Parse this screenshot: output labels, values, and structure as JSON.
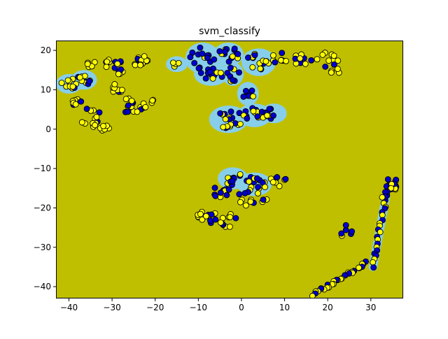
{
  "chart_data": {
    "type": "scatter",
    "title": "svm_classify",
    "xlabel": "",
    "ylabel": "",
    "xlim": [
      -43,
      37.5
    ],
    "ylim": [
      -43,
      22.5
    ],
    "x_ticks": [
      -40,
      -30,
      -20,
      -10,
      0,
      10,
      20,
      30
    ],
    "y_ticks": [
      -40,
      -30,
      -20,
      -10,
      0,
      10,
      20
    ],
    "grid": false,
    "legend": "none",
    "colors": {
      "background_region": "#bfbf00",
      "boundary_region": "#87ceeb",
      "class_a": "#0000cc",
      "class_b": "#ffff00",
      "edge": "#000000"
    },
    "clusters": [
      {
        "cx": -40,
        "cy": 11.5,
        "rx": 2.0,
        "ry": 1.5,
        "n": 10,
        "fa": 0.3,
        "boundary": true
      },
      {
        "cx": -36.5,
        "cy": 12.5,
        "rx": 2.0,
        "ry": 1.5,
        "n": 10,
        "fa": 0.4,
        "boundary": true
      },
      {
        "cx": -38,
        "cy": 7.0,
        "rx": 1.5,
        "ry": 1.5,
        "n": 7,
        "fa": 0.3,
        "boundary": false
      },
      {
        "cx": -35,
        "cy": 3.0,
        "rx": 2.5,
        "ry": 2.5,
        "n": 14,
        "fa": 0.3,
        "boundary": false
      },
      {
        "cx": -31.5,
        "cy": 0.2,
        "rx": 1.5,
        "ry": 0.8,
        "n": 6,
        "fa": 0.1,
        "boundary": false
      },
      {
        "cx": -35,
        "cy": 16.5,
        "rx": 1.8,
        "ry": 1.0,
        "n": 5,
        "fa": 0.2,
        "boundary": false
      },
      {
        "cx": -31,
        "cy": 16.8,
        "rx": 1.5,
        "ry": 1.2,
        "n": 6,
        "fa": 0.3,
        "boundary": false
      },
      {
        "cx": -28,
        "cy": 15.5,
        "rx": 2.0,
        "ry": 2.0,
        "n": 10,
        "fa": 0.4,
        "boundary": false
      },
      {
        "cx": -29,
        "cy": 10.0,
        "rx": 1.5,
        "ry": 1.5,
        "n": 8,
        "fa": 0.1,
        "boundary": false
      },
      {
        "cx": -25.5,
        "cy": 6.0,
        "rx": 3.0,
        "ry": 2.0,
        "n": 14,
        "fa": 0.4,
        "boundary": false
      },
      {
        "cx": -21.5,
        "cy": 6.5,
        "rx": 1.5,
        "ry": 1.5,
        "n": 6,
        "fa": 0.2,
        "boundary": false
      },
      {
        "cx": -24,
        "cy": 17.5,
        "rx": 2.5,
        "ry": 1.5,
        "n": 14,
        "fa": 0.2,
        "boundary": false
      },
      {
        "cx": -15,
        "cy": 16.5,
        "rx": 1.5,
        "ry": 1.0,
        "n": 4,
        "fa": 0.0,
        "boundary": true
      },
      {
        "cx": -9,
        "cy": 18.0,
        "rx": 3.0,
        "ry": 3.0,
        "n": 14,
        "fa": 0.8,
        "boundary": true
      },
      {
        "cx": -7,
        "cy": 14.0,
        "rx": 3.0,
        "ry": 2.0,
        "n": 12,
        "fa": 0.8,
        "boundary": true
      },
      {
        "cx": -3,
        "cy": 19.0,
        "rx": 2.5,
        "ry": 2.0,
        "n": 14,
        "fa": 0.8,
        "boundary": true
      },
      {
        "cx": -2,
        "cy": 14.0,
        "rx": 1.5,
        "ry": 2.0,
        "n": 8,
        "fa": 0.7,
        "boundary": true
      },
      {
        "cx": 4,
        "cy": 17.0,
        "rx": 3.0,
        "ry": 2.5,
        "n": 14,
        "fa": 0.3,
        "boundary": true
      },
      {
        "cx": 9,
        "cy": 18.0,
        "rx": 2.0,
        "ry": 1.5,
        "n": 8,
        "fa": 0.4,
        "boundary": false
      },
      {
        "cx": 14,
        "cy": 17.5,
        "rx": 2.5,
        "ry": 1.5,
        "n": 10,
        "fa": 0.3,
        "boundary": false
      },
      {
        "cx": 20,
        "cy": 17.5,
        "rx": 2.5,
        "ry": 2.0,
        "n": 10,
        "fa": 0.4,
        "boundary": false
      },
      {
        "cx": 21.5,
        "cy": 14.8,
        "rx": 1.5,
        "ry": 0.8,
        "n": 5,
        "fa": 0.2,
        "boundary": false
      },
      {
        "cx": 1.5,
        "cy": 9.0,
        "rx": 1.5,
        "ry": 2.0,
        "n": 8,
        "fa": 0.7,
        "boundary": true
      },
      {
        "cx": -3,
        "cy": 2.5,
        "rx": 3.5,
        "ry": 2.5,
        "n": 18,
        "fa": 0.5,
        "boundary": true
      },
      {
        "cx": 3,
        "cy": 3.5,
        "rx": 3.0,
        "ry": 2.0,
        "n": 14,
        "fa": 0.5,
        "boundary": true
      },
      {
        "cx": 7.5,
        "cy": 4.0,
        "rx": 2.0,
        "ry": 1.5,
        "n": 8,
        "fa": 0.5,
        "boundary": true
      },
      {
        "cx": -2,
        "cy": -12.5,
        "rx": 2.5,
        "ry": 1.8,
        "n": 10,
        "fa": 0.6,
        "boundary": true
      },
      {
        "cx": 3,
        "cy": -14.0,
        "rx": 3.0,
        "ry": 2.0,
        "n": 14,
        "fa": 0.5,
        "boundary": true
      },
      {
        "cx": 8.5,
        "cy": -13.0,
        "rx": 2.0,
        "ry": 1.5,
        "n": 8,
        "fa": 0.3,
        "boundary": false
      },
      {
        "cx": -5,
        "cy": -16.0,
        "rx": 2.5,
        "ry": 1.5,
        "n": 10,
        "fa": 0.5,
        "boundary": false
      },
      {
        "cx": 2,
        "cy": -17.5,
        "rx": 4.0,
        "ry": 2.0,
        "n": 14,
        "fa": 0.5,
        "boundary": false
      },
      {
        "cx": -8,
        "cy": -22.0,
        "rx": 2.5,
        "ry": 2.0,
        "n": 14,
        "fa": 0.5,
        "boundary": false
      },
      {
        "cx": -3,
        "cy": -23.5,
        "rx": 2.0,
        "ry": 2.0,
        "n": 10,
        "fa": 0.5,
        "boundary": false
      },
      {
        "cx": 35,
        "cy": -14.0,
        "rx": 1.5,
        "ry": 2.0,
        "n": 12,
        "fa": 0.6,
        "boundary": false
      },
      {
        "cx": 24.5,
        "cy": -26.0,
        "rx": 1.5,
        "ry": 2.0,
        "n": 6,
        "fa": 0.5,
        "boundary": false
      }
    ],
    "chains": [
      {
        "x0": 33.5,
        "y0": -17.0,
        "x1": 30.5,
        "y1": -35.0,
        "n": 22,
        "fa": 0.5,
        "boundary": true
      },
      {
        "x0": 29.0,
        "y0": -34.0,
        "x1": 16.5,
        "y1": -42.0,
        "n": 30,
        "fa": 0.4,
        "boundary": false
      },
      {
        "x0": 35.5,
        "y0": -13.0,
        "x1": 33.0,
        "y1": -17.5,
        "n": 8,
        "fa": 0.6,
        "boundary": false
      }
    ]
  }
}
